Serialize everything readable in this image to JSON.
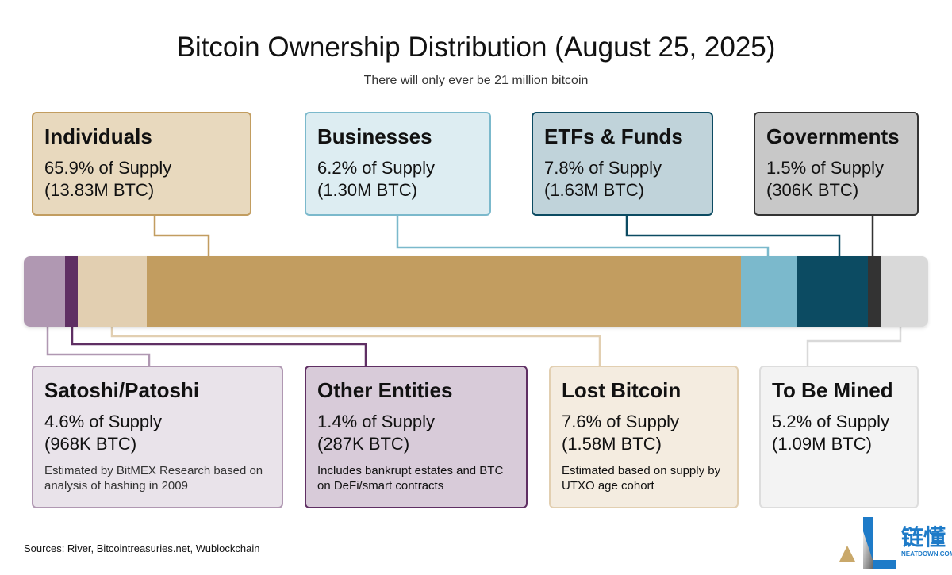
{
  "title": "Bitcoin Ownership Distribution (August 25, 2025)",
  "subtitle": "There will only ever be 21 million bitcoin",
  "segments": [
    {
      "name": "Satoshi/Patoshi",
      "percent": 4.6,
      "color": "#b098b2"
    },
    {
      "name": "Other Entities",
      "percent": 1.4,
      "color": "#5f2f63"
    },
    {
      "name": "Lost Bitcoin",
      "percent": 7.6,
      "color": "#e2cfb1"
    },
    {
      "name": "Individuals",
      "percent": 65.9,
      "color": "#c29d60"
    },
    {
      "name": "Businesses",
      "percent": 6.2,
      "color": "#7bb9cc"
    },
    {
      "name": "ETFs & Funds",
      "percent": 7.8,
      "color": "#0c4b62"
    },
    {
      "name": "Governments",
      "percent": 1.5,
      "color": "#333333"
    },
    {
      "name": "To Be Mined",
      "percent": 5.2,
      "color": "#d9d9d9"
    }
  ],
  "boxes": {
    "individuals": {
      "title": "Individuals",
      "share": "65.9% of Supply",
      "amount": "(13.83M BTC)"
    },
    "businesses": {
      "title": "Businesses",
      "share": "6.2% of Supply",
      "amount": "(1.30M BTC)"
    },
    "etfs": {
      "title": "ETFs & Funds",
      "share": "7.8% of Supply",
      "amount": "(1.63M BTC)"
    },
    "governments": {
      "title": "Governments",
      "share": "1.5% of Supply",
      "amount": "(306K BTC)"
    },
    "satoshi": {
      "title": "Satoshi/Patoshi",
      "share": "4.6% of Supply",
      "amount": "(968K BTC)",
      "note": "Estimated by BitMEX Research based on analysis of hashing in 2009"
    },
    "other": {
      "title": "Other Entities",
      "share": "1.4% of Supply",
      "amount": "(287K BTC)",
      "note": "Includes bankrupt estates and BTC on DeFi/smart contracts"
    },
    "lost": {
      "title": "Lost Bitcoin",
      "share": "7.6% of Supply",
      "amount": "(1.58M BTC)",
      "note": "Estimated based on supply by UTXO age cohort"
    },
    "mined": {
      "title": "To Be Mined",
      "share": "5.2% of Supply",
      "amount": "(1.09M BTC)"
    }
  },
  "sources": "Sources: River, Bitcointreasuries.net, Wublockchain",
  "logo": {
    "text": "链懂",
    "domain": "NEATDOWN.COM"
  }
}
